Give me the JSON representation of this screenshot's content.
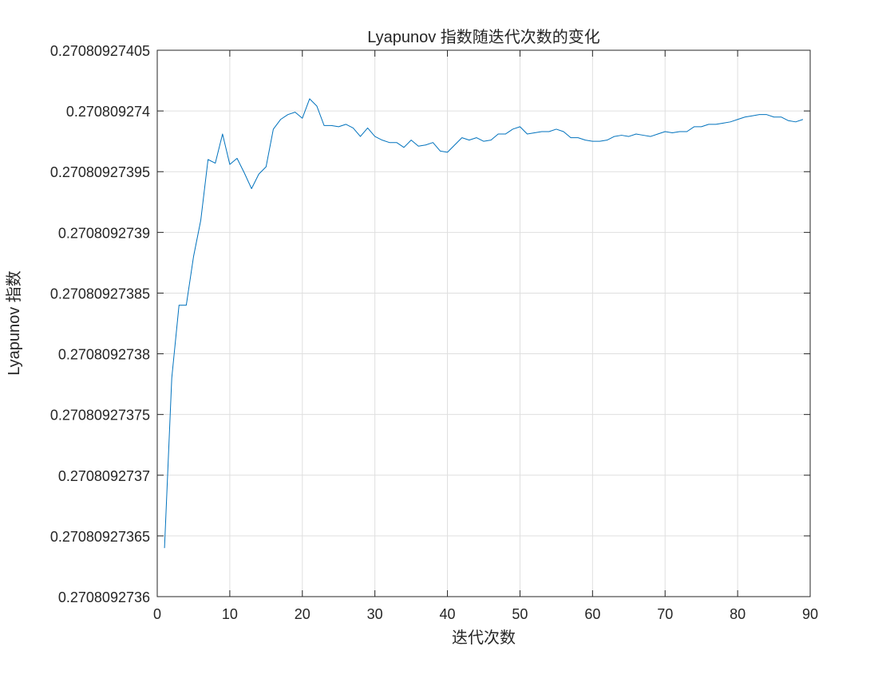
{
  "chart_data": {
    "type": "line",
    "title": "Lyapunov 指数随迭代次数的变化",
    "xlabel": "迭代次数",
    "ylabel": "Lyapunov 指数",
    "xlim": [
      0,
      90
    ],
    "ylim": [
      0.2708092736,
      0.27080927405
    ],
    "grid": true,
    "x_ticks": [
      0,
      10,
      20,
      30,
      40,
      50,
      60,
      70,
      80,
      90
    ],
    "x_tick_labels": [
      "0",
      "10",
      "20",
      "30",
      "40",
      "50",
      "60",
      "70",
      "80",
      "90"
    ],
    "y_ticks": [
      0.2708092736,
      0.27080927365,
      0.2708092737,
      0.27080927375,
      0.2708092738,
      0.27080927385,
      0.2708092739,
      0.27080927395,
      0.270809274,
      0.27080927405
    ],
    "y_tick_labels": [
      "0.2708092736",
      "0.27080927365",
      "0.2708092737",
      "0.27080927375",
      "0.2708092738",
      "0.27080927385",
      "0.2708092739",
      "0.27080927395",
      "0.270809274",
      "0.27080927405"
    ],
    "series_color": "#0072BD",
    "series": [
      {
        "x": [
          1,
          2,
          3,
          4,
          5,
          6,
          7,
          8,
          9,
          10,
          11,
          12,
          13,
          14,
          15,
          16,
          17,
          18,
          19,
          20,
          21,
          22,
          23,
          24,
          25,
          26,
          27,
          28,
          29,
          30,
          31,
          32,
          33,
          34,
          35,
          36,
          37,
          38,
          39,
          40,
          41,
          42,
          43,
          44,
          45,
          46,
          47,
          48,
          49,
          50,
          51,
          52,
          53,
          54,
          55,
          56,
          57,
          58,
          59,
          60,
          61,
          62,
          63,
          64,
          65,
          66,
          67,
          68,
          69,
          70,
          71,
          72,
          73,
          74,
          75,
          76,
          77,
          78,
          79,
          80,
          81,
          82,
          83,
          84,
          85,
          86,
          87,
          88,
          89
        ],
        "values": [
          0.27080927364,
          0.27080927378,
          0.27080927384,
          0.27080927384,
          0.27080927388,
          0.27080927391,
          0.27080927396,
          0.270809273957,
          0.270809273981,
          0.270809273956,
          0.270809273961,
          0.270809273949,
          0.270809273936,
          0.270809273948,
          0.270809273954,
          0.270809273985,
          0.270809273993,
          0.270809273997,
          0.270809273999,
          0.270809273994,
          0.27080927401,
          0.270809274004,
          0.270809273988,
          0.270809273988,
          0.270809273987,
          0.270809273989,
          0.270809273986,
          0.270809273979,
          0.270809273986,
          0.270809273979,
          0.270809273976,
          0.270809273974,
          0.270809273974,
          0.27080927397,
          0.270809273976,
          0.270809273971,
          0.270809273972,
          0.270809273974,
          0.270809273967,
          0.270809273966,
          0.270809273972,
          0.270809273978,
          0.270809273976,
          0.270809273978,
          0.270809273975,
          0.270809273976,
          0.270809273981,
          0.270809273981,
          0.270809273985,
          0.270809273987,
          0.270809273981,
          0.270809273982,
          0.270809273983,
          0.270809273983,
          0.270809273985,
          0.270809273983,
          0.270809273978,
          0.270809273978,
          0.270809273976,
          0.270809273975,
          0.270809273975,
          0.270809273976,
          0.270809273979,
          0.27080927398,
          0.270809273979,
          0.270809273981,
          0.27080927398,
          0.270809273979,
          0.270809273981,
          0.270809273983,
          0.270809273982,
          0.270809273983,
          0.270809273983,
          0.270809273987,
          0.270809273987,
          0.270809273989,
          0.270809273989,
          0.27080927399,
          0.270809273991,
          0.270809273993,
          0.270809273995,
          0.270809273996,
          0.270809273997,
          0.270809273997,
          0.270809273995,
          0.270809273995,
          0.270809273992,
          0.270809273991,
          0.270809273993
        ]
      }
    ]
  }
}
